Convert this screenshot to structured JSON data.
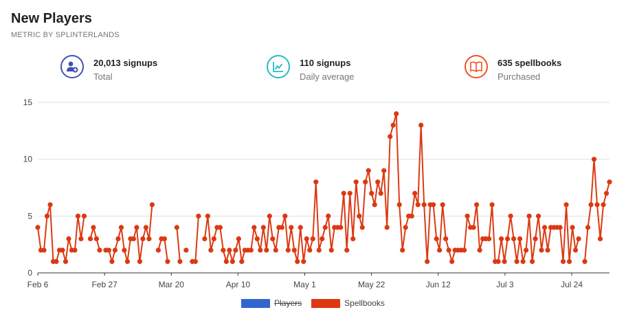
{
  "header": {
    "title": "New Players",
    "subtitle": "METRIC BY SPLINTERLANDS"
  },
  "stats": [
    {
      "icon": "add-user-icon",
      "value": "20,013 signups",
      "label": "Total",
      "color": "#3f51b5"
    },
    {
      "icon": "line-chart-icon",
      "value": "110 signups",
      "label": "Daily average",
      "color": "#26b9c8"
    },
    {
      "icon": "book-icon",
      "value": "635 spellbooks",
      "label": "Purchased",
      "color": "#f4511e"
    }
  ],
  "chart_data": {
    "type": "line",
    "x_tick_labels": [
      "Feb 6",
      "Feb 27",
      "Mar 20",
      "Apr 10",
      "May 1",
      "May 22",
      "Jun 12",
      "Jul 3",
      "Jul 24"
    ],
    "ylim": [
      0,
      15
    ],
    "y_ticks": [
      0,
      5,
      10,
      15
    ],
    "grid": true,
    "legend_position": "bottom",
    "series": [
      {
        "name": "Players",
        "color": "#3366cc",
        "hidden": true,
        "values": []
      },
      {
        "name": "Spellbooks",
        "color": "#dc3912",
        "hidden": false,
        "values": [
          4,
          2,
          2,
          5,
          6,
          1,
          1,
          2,
          2,
          1,
          3,
          2,
          2,
          5,
          3,
          5,
          null,
          3,
          4,
          3,
          2,
          null,
          2,
          2,
          1,
          2,
          3,
          4,
          2,
          1,
          3,
          3,
          4,
          1,
          3,
          4,
          3,
          6,
          null,
          2,
          3,
          3,
          1,
          null,
          null,
          4,
          1,
          null,
          2,
          null,
          1,
          1,
          5,
          null,
          3,
          5,
          2,
          3,
          4,
          4,
          2,
          1,
          2,
          1,
          2,
          3,
          1,
          2,
          2,
          2,
          4,
          3,
          2,
          4,
          2,
          5,
          3,
          2,
          4,
          4,
          5,
          2,
          4,
          2,
          1,
          4,
          1,
          3,
          2,
          3,
          8,
          2,
          3,
          4,
          5,
          2,
          4,
          4,
          4,
          7,
          2,
          7,
          3,
          8,
          5,
          4,
          8,
          9,
          7,
          6,
          8,
          7,
          9,
          4,
          12,
          13,
          14,
          6,
          2,
          4,
          5,
          5,
          7,
          6,
          13,
          6,
          1,
          6,
          6,
          3,
          2,
          6,
          3,
          2,
          1,
          2,
          2,
          2,
          2,
          5,
          4,
          4,
          6,
          2,
          3,
          3,
          3,
          6,
          1,
          1,
          3,
          1,
          3,
          5,
          3,
          1,
          3,
          1,
          2,
          5,
          1,
          3,
          5,
          2,
          4,
          2,
          4,
          4,
          4,
          4,
          1,
          6,
          1,
          4,
          2,
          3,
          null,
          1,
          4,
          6,
          10,
          6,
          3,
          6,
          7,
          8
        ]
      }
    ]
  }
}
